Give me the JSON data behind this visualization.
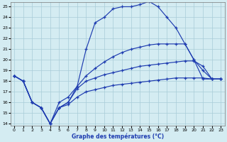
{
  "xlabel": "Graphe des températures (°C)",
  "background_color": "#d4ecf2",
  "grid_color": "#a8ccd8",
  "line_color": "#1e3cb0",
  "xlim": [
    0,
    23
  ],
  "ylim": [
    14,
    25
  ],
  "xticks": [
    0,
    1,
    2,
    3,
    4,
    5,
    6,
    7,
    8,
    9,
    10,
    11,
    12,
    13,
    14,
    15,
    16,
    17,
    18,
    19,
    20,
    21,
    22,
    23
  ],
  "yticks": [
    14,
    15,
    16,
    17,
    18,
    19,
    20,
    21,
    22,
    23,
    24,
    25
  ],
  "hours": [
    0,
    1,
    2,
    3,
    4,
    5,
    6,
    7,
    8,
    9,
    10,
    11,
    12,
    13,
    14,
    15,
    16,
    17,
    18,
    19,
    20,
    21,
    22,
    23
  ],
  "line1": [
    18.5,
    18.0,
    16.0,
    15.5,
    14.0,
    16.0,
    16.5,
    17.5,
    21.0,
    23.5,
    24.0,
    24.8,
    25.0,
    25.0,
    25.2,
    25.5,
    25.0,
    24.0,
    23.0,
    21.5,
    20.0,
    19.0,
    18.2,
    18.2
  ],
  "line2": [
    18.5,
    18.0,
    16.0,
    15.5,
    14.0,
    15.5,
    16.0,
    17.5,
    18.5,
    19.2,
    19.8,
    20.3,
    20.7,
    21.0,
    21.2,
    21.4,
    21.5,
    21.5,
    21.5,
    21.5,
    20.0,
    18.2,
    18.2,
    18.2
  ],
  "line3": [
    18.5,
    18.0,
    16.0,
    15.5,
    14.0,
    15.5,
    16.0,
    17.3,
    18.0,
    18.3,
    18.6,
    18.8,
    19.0,
    19.2,
    19.4,
    19.5,
    19.6,
    19.7,
    19.8,
    19.9,
    19.9,
    19.4,
    18.2,
    18.2
  ],
  "line4": [
    18.5,
    18.0,
    16.0,
    15.5,
    14.0,
    15.5,
    15.8,
    16.5,
    17.0,
    17.2,
    17.4,
    17.6,
    17.7,
    17.8,
    17.9,
    18.0,
    18.1,
    18.2,
    18.3,
    18.3,
    18.3,
    18.3,
    18.2,
    18.2
  ]
}
